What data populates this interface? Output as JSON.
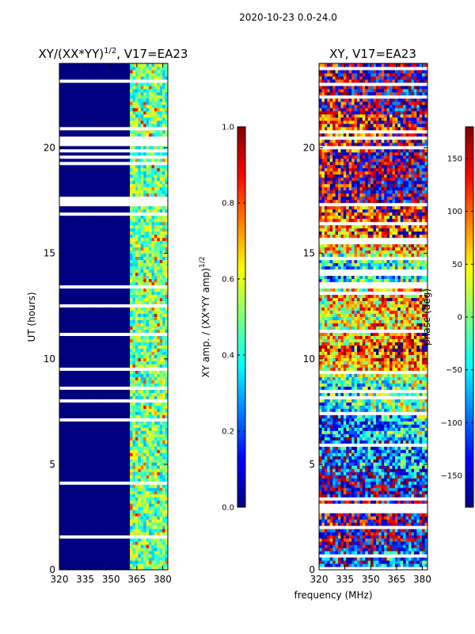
{
  "suptitle": "2020-10-23 0.0-24.0",
  "shared_xlabel": "frequency (MHz)",
  "chart_data": [
    {
      "type": "heatmap",
      "title_main": "XY/(XX*YY)",
      "title_sup": "1/2",
      "title_rest": ", V17=EA23",
      "ylabel": "UT (hours)",
      "xlim": [
        320,
        383
      ],
      "ylim": [
        0,
        24
      ],
      "xticks": [
        "320",
        "335",
        "350",
        "365",
        "380"
      ],
      "yticks": [
        "0",
        "5",
        "10",
        "15",
        "20"
      ],
      "colorbar": {
        "label_main": "XY amp. / (XX*YY amp)",
        "label_sup": "1/2",
        "range": [
          0.0,
          1.0
        ],
        "ticks": [
          "0.0",
          "0.2",
          "0.4",
          "0.6",
          "0.8",
          "1.0"
        ]
      }
    },
    {
      "type": "heatmap",
      "title_main": "XY, V17=EA23",
      "xlim": [
        320,
        383
      ],
      "ylim": [
        0,
        24
      ],
      "xticks": [
        "320",
        "335",
        "350",
        "365",
        "380"
      ],
      "yticks": [
        "0",
        "5",
        "10",
        "15",
        "20"
      ],
      "colorbar": {
        "label_main": "phase (deg)",
        "range": [
          -180,
          180
        ],
        "ticks": [
          "−150",
          "−100",
          "−50",
          "0",
          "50",
          "100",
          "150"
        ]
      }
    }
  ]
}
